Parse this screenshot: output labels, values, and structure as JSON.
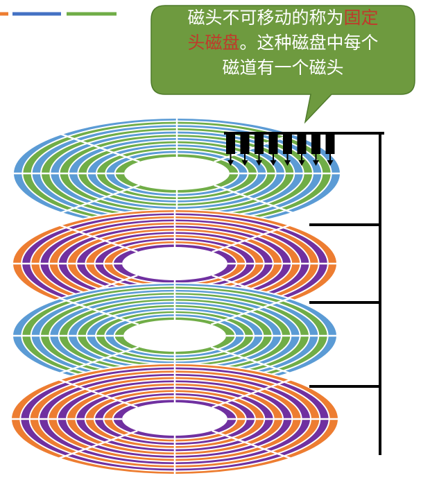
{
  "callout": {
    "line1_prefix": "磁头不可移动的称为",
    "line1_highlight": "固定",
    "line2_highlight": "头磁盘",
    "line2_suffix": "。这种磁盘中每个",
    "line3": "磁道有一个磁头"
  },
  "colors": {
    "callout_bg": "#6e9a3f",
    "callout_text": "#ffffff",
    "highlight_text": "#c0392b",
    "disk_blue": "#5b9bd5",
    "disk_green": "#70ad47",
    "disk_orange": "#ed7d31",
    "disk_purple": "#7030a0",
    "arm": "#000000",
    "deco": [
      "#ed7d31",
      "#4472c4",
      "#70ad47"
    ]
  },
  "platters": [
    {
      "name": "platter-1",
      "scheme": [
        "disk_blue",
        "disk_green"
      ]
    },
    {
      "name": "platter-2",
      "scheme": [
        "disk_orange",
        "disk_purple"
      ]
    },
    {
      "name": "platter-3",
      "scheme": [
        "disk_blue",
        "disk_green"
      ]
    },
    {
      "name": "platter-4",
      "scheme": [
        "disk_orange",
        "disk_purple"
      ]
    }
  ],
  "fixed_heads": {
    "count": 8
  }
}
